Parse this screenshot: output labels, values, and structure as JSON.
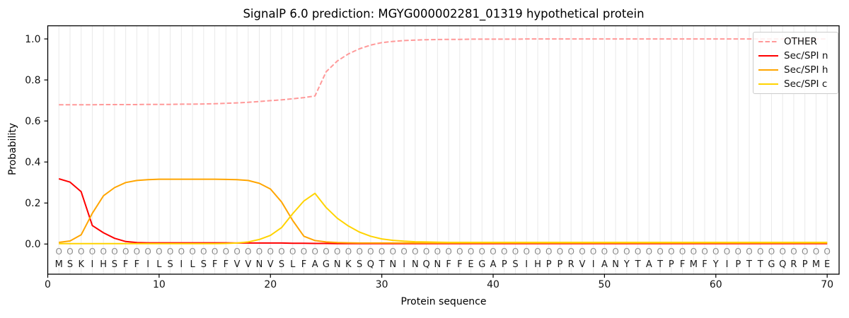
{
  "chart_data": {
    "type": "line",
    "title": "SignalP 6.0 prediction: MGYG000002281_01319 hypothetical protein",
    "xlabel": "Protein sequence",
    "ylabel": "Probability",
    "xlim": [
      0,
      71.07
    ],
    "ylim": [
      -0.147,
      1.064
    ],
    "xticks": [
      0,
      10,
      20,
      30,
      40,
      50,
      60,
      70
    ],
    "yticks": [
      0.0,
      0.2,
      0.4,
      0.6,
      0.8,
      1.0
    ],
    "grid": "vertical line per residue",
    "legend_position": "upper right",
    "colors": {
      "grid": "#e9e9e9",
      "frame": "#000000",
      "tick_label": "#111111",
      "marker_row": "#8a8a8a",
      "letter_row": "#1a1a1a"
    },
    "sequence": "MSKIHSFFILSILSFFVVNVSLFAGNKSQTNINQNFFEGAPSIHPPRVIANYTATPFMFYIPTTGQRPME",
    "position_labels": "OOOOOOOOOOOOOOOOOOOOOOOOOOOOOOOOOOOOOOOOOOOOOOOOOOOOOOOOOOOOOOOOOOOOOO",
    "series": [
      {
        "name": "OTHER",
        "color": "#ff9999",
        "dashed": true,
        "values": [
          0.679,
          0.679,
          0.679,
          0.679,
          0.68,
          0.68,
          0.68,
          0.68,
          0.681,
          0.681,
          0.681,
          0.682,
          0.682,
          0.683,
          0.684,
          0.686,
          0.688,
          0.691,
          0.695,
          0.699,
          0.703,
          0.708,
          0.714,
          0.722,
          0.84,
          0.892,
          0.927,
          0.952,
          0.97,
          0.982,
          0.988,
          0.992,
          0.994,
          0.996,
          0.997,
          0.998,
          0.998,
          0.999,
          0.999,
          0.999,
          0.999,
          0.999,
          1.0,
          1.0,
          1.0,
          1.0,
          1.0,
          1.0,
          1.0,
          1.0,
          1.0,
          1.0,
          1.0,
          1.0,
          1.0,
          1.0,
          1.0,
          1.0,
          1.0,
          1.0,
          1.0,
          1.0,
          1.0,
          1.0,
          1.0,
          1.0,
          1.0,
          1.0,
          1.0,
          1.0
        ]
      },
      {
        "name": "Sec/SPI n",
        "color": "#ff0000",
        "dashed": false,
        "values": [
          0.318,
          0.302,
          0.255,
          0.09,
          0.055,
          0.028,
          0.012,
          0.007,
          0.006,
          0.006,
          0.006,
          0.006,
          0.006,
          0.006,
          0.006,
          0.006,
          0.005,
          0.005,
          0.005,
          0.005,
          0.005,
          0.004,
          0.004,
          0.003,
          0.003,
          0.002,
          0.002,
          0.002,
          0.002,
          0.002,
          0.002,
          0.002,
          0.002,
          0.002,
          0.002,
          0.002,
          0.002,
          0.002,
          0.002,
          0.002,
          0.002,
          0.002,
          0.002,
          0.002,
          0.002,
          0.002,
          0.002,
          0.002,
          0.002,
          0.002,
          0.002,
          0.002,
          0.002,
          0.002,
          0.002,
          0.002,
          0.002,
          0.002,
          0.002,
          0.002,
          0.002,
          0.002,
          0.002,
          0.002,
          0.002,
          0.002,
          0.002,
          0.002,
          0.002,
          0.002
        ]
      },
      {
        "name": "Sec/SPI h",
        "color": "#ffa500",
        "dashed": false,
        "values": [
          0.008,
          0.015,
          0.045,
          0.15,
          0.235,
          0.275,
          0.3,
          0.31,
          0.314,
          0.316,
          0.316,
          0.316,
          0.316,
          0.316,
          0.316,
          0.315,
          0.314,
          0.31,
          0.296,
          0.268,
          0.205,
          0.115,
          0.038,
          0.017,
          0.01,
          0.007,
          0.006,
          0.005,
          0.005,
          0.005,
          0.005,
          0.005,
          0.005,
          0.005,
          0.005,
          0.005,
          0.005,
          0.005,
          0.005,
          0.005,
          0.005,
          0.005,
          0.005,
          0.005,
          0.005,
          0.005,
          0.005,
          0.005,
          0.005,
          0.005,
          0.005,
          0.005,
          0.005,
          0.005,
          0.005,
          0.005,
          0.005,
          0.005,
          0.005,
          0.005,
          0.005,
          0.005,
          0.005,
          0.005,
          0.005,
          0.005,
          0.005,
          0.005,
          0.005,
          0.005
        ]
      },
      {
        "name": "Sec/SPI c",
        "color": "#ffd300",
        "dashed": false,
        "values": [
          0.002,
          0.002,
          0.002,
          0.002,
          0.002,
          0.002,
          0.002,
          0.002,
          0.002,
          0.002,
          0.002,
          0.002,
          0.002,
          0.002,
          0.002,
          0.003,
          0.005,
          0.01,
          0.022,
          0.042,
          0.08,
          0.148,
          0.21,
          0.247,
          0.178,
          0.126,
          0.088,
          0.058,
          0.038,
          0.025,
          0.018,
          0.014,
          0.011,
          0.01,
          0.009,
          0.008,
          0.008,
          0.008,
          0.008,
          0.008,
          0.008,
          0.008,
          0.008,
          0.008,
          0.008,
          0.008,
          0.008,
          0.008,
          0.008,
          0.008,
          0.008,
          0.008,
          0.008,
          0.008,
          0.008,
          0.008,
          0.008,
          0.008,
          0.008,
          0.008,
          0.008,
          0.008,
          0.008,
          0.008,
          0.008,
          0.008,
          0.008,
          0.008,
          0.008,
          0.008
        ]
      }
    ]
  }
}
